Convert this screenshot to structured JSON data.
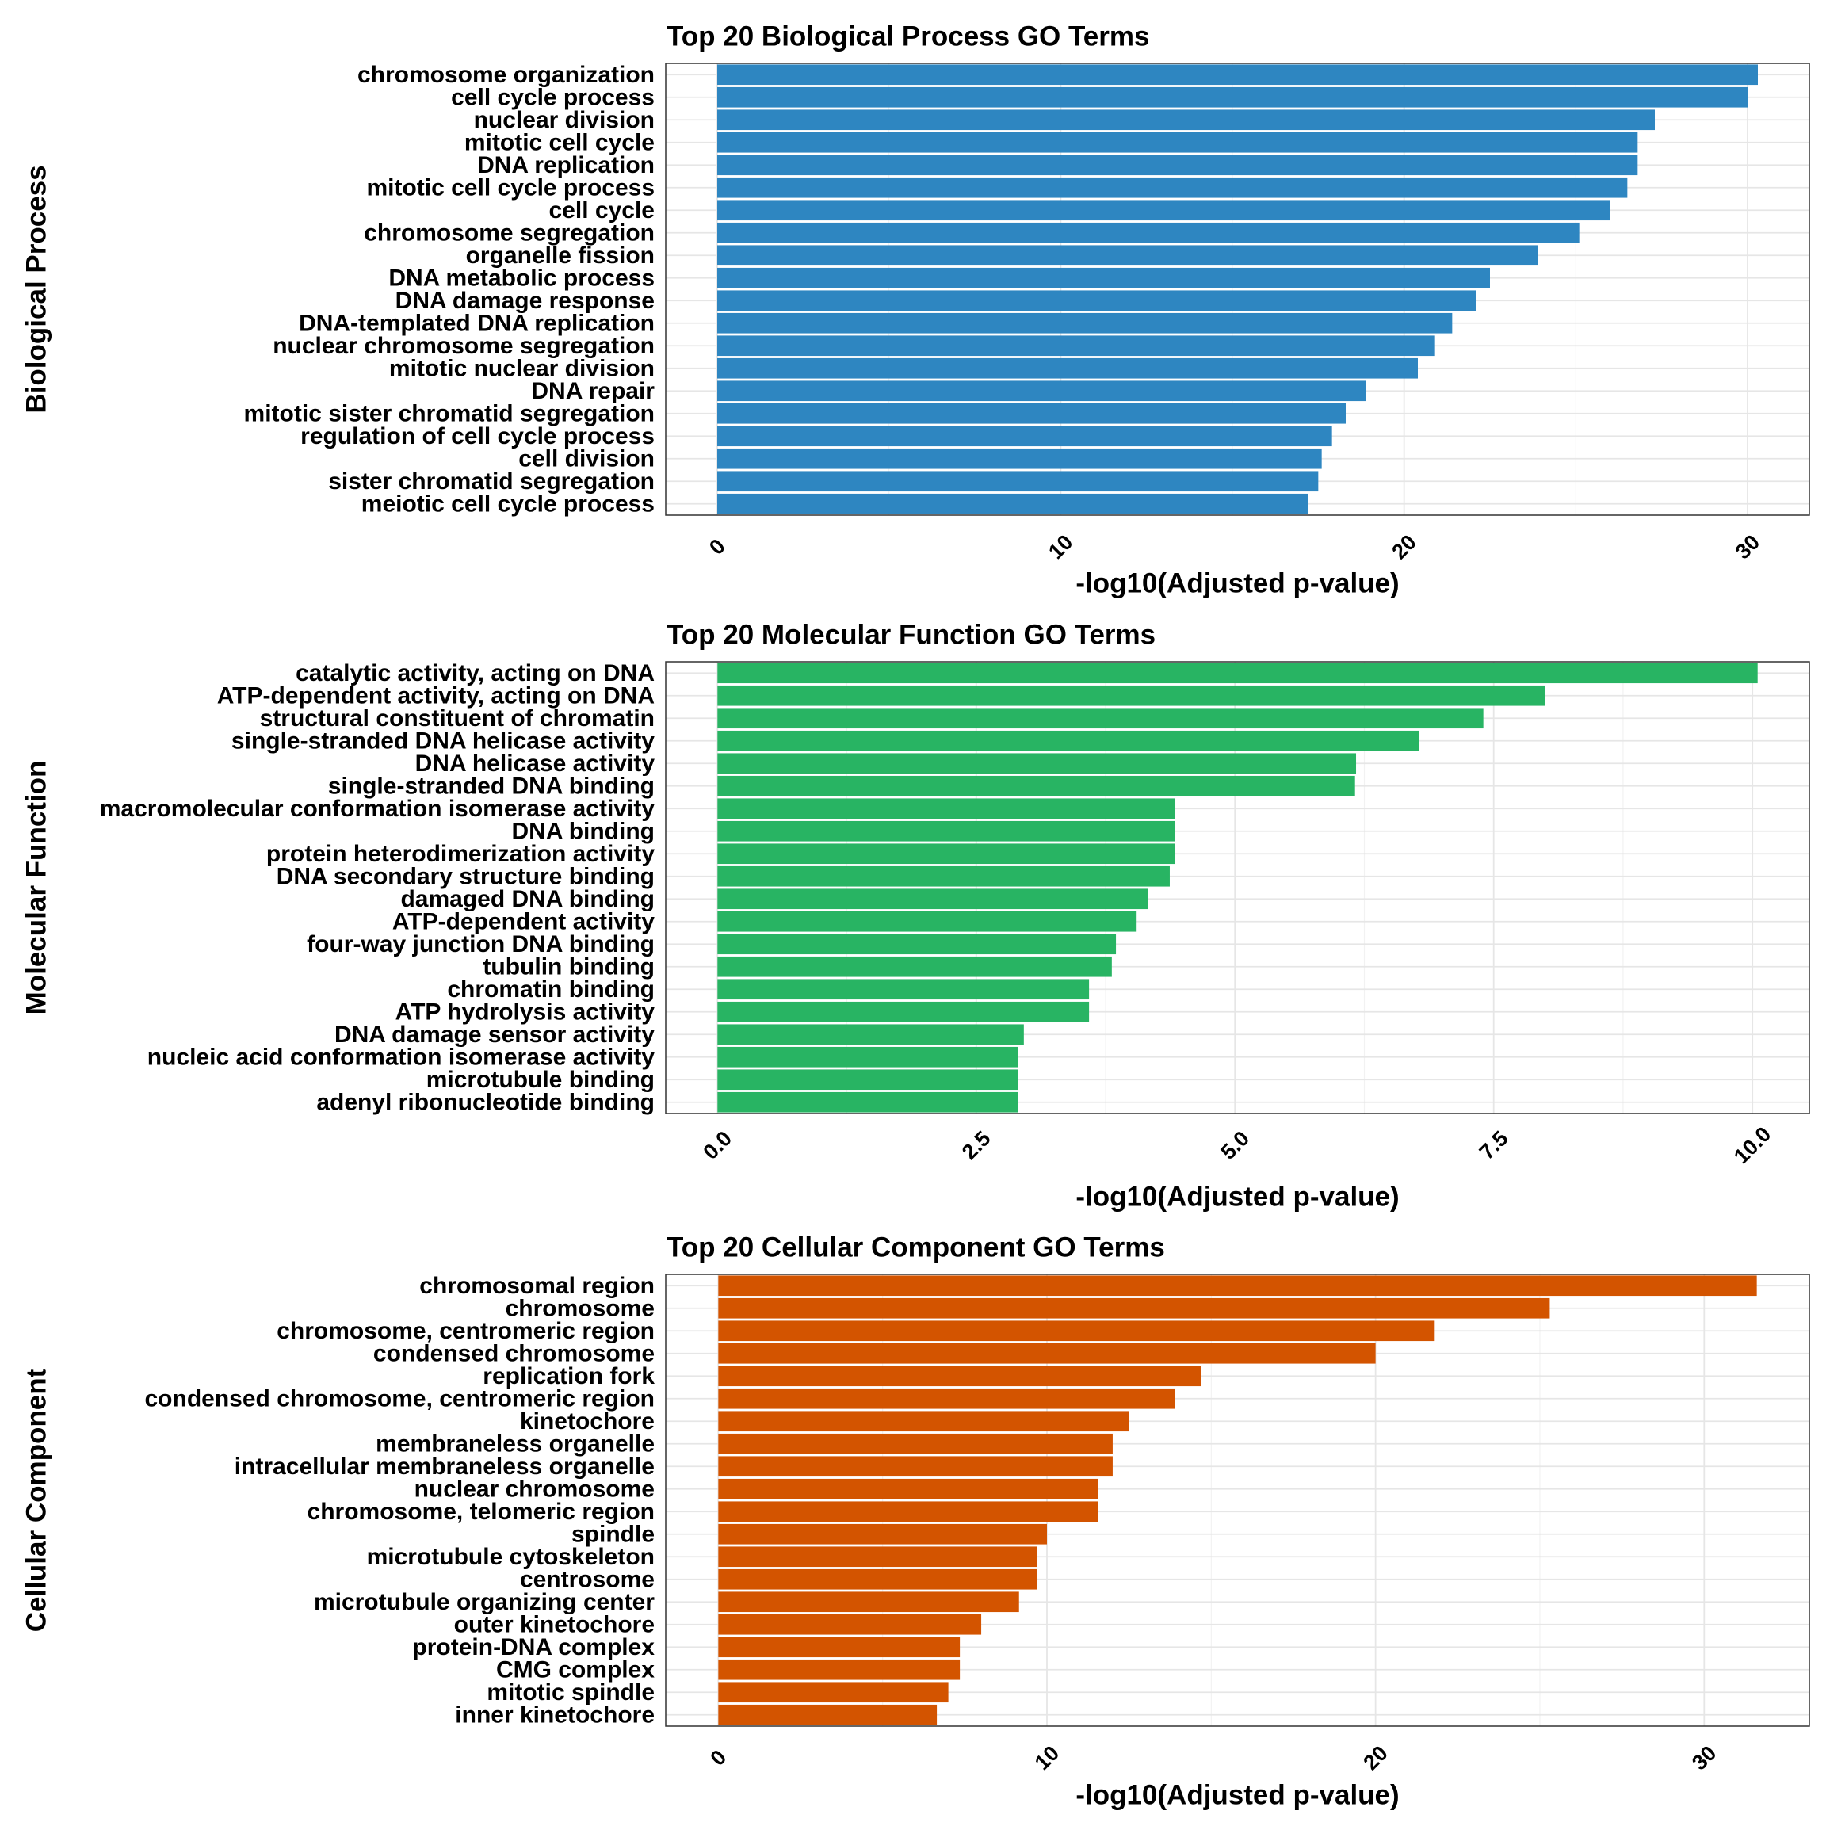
{
  "chart_data": [
    {
      "type": "bar",
      "orientation": "horizontal",
      "title": "Top 20 Biological Process GO Terms",
      "xlabel": "-log10(Adjusted p-value)",
      "ylabel": "Biological Process",
      "xlim": [
        -1.5,
        31.8
      ],
      "xticks": [
        0,
        10,
        20,
        30
      ],
      "xtick_labels": [
        "0",
        "10",
        "20",
        "30"
      ],
      "grid": true,
      "color": "#2e86c1",
      "categories": [
        "chromosome organization",
        "cell cycle process",
        "nuclear division",
        "mitotic cell cycle",
        "DNA replication",
        "mitotic cell cycle process",
        "cell cycle",
        "chromosome segregation",
        "organelle fission",
        "DNA metabolic process",
        "DNA damage response",
        "DNA-templated DNA replication",
        "nuclear chromosome segregation",
        "mitotic nuclear division",
        "DNA repair",
        "mitotic sister chromatid segregation",
        "regulation of cell cycle process",
        "cell division",
        "sister chromatid segregation",
        "meiotic cell cycle process"
      ],
      "values": [
        30.3,
        30.0,
        27.3,
        26.8,
        26.8,
        26.5,
        26.0,
        25.1,
        23.9,
        22.5,
        22.1,
        21.4,
        20.9,
        20.4,
        18.9,
        18.3,
        17.9,
        17.6,
        17.5,
        17.2
      ]
    },
    {
      "type": "bar",
      "orientation": "horizontal",
      "title": "Top 20 Molecular Function GO Terms",
      "xlabel": "-log10(Adjusted p-value)",
      "ylabel": "Molecular Function",
      "xlim": [
        -0.5,
        10.55
      ],
      "xticks": [
        0,
        2.5,
        5,
        7.5,
        10
      ],
      "xtick_labels": [
        "0.0",
        "2.5",
        "5.0",
        "7.5",
        "10.0"
      ],
      "grid": true,
      "color": "#28b463",
      "categories": [
        "catalytic activity, acting on DNA",
        "ATP-dependent activity, acting on DNA",
        "structural constituent of chromatin",
        "single-stranded DNA helicase activity",
        "DNA helicase activity",
        "single-stranded DNA binding",
        "macromolecular conformation isomerase activity",
        "DNA binding",
        "protein heterodimerization activity",
        "DNA secondary structure binding",
        "damaged DNA binding",
        "ATP-dependent activity",
        "four-way junction DNA binding",
        "tubulin binding",
        "chromatin binding",
        "ATP hydrolysis activity",
        "DNA damage sensor activity",
        "nucleic acid conformation isomerase activity",
        "microtubule binding",
        "adenyl ribonucleotide binding"
      ],
      "values": [
        10.05,
        8.0,
        7.4,
        6.78,
        6.17,
        6.16,
        4.42,
        4.42,
        4.42,
        4.37,
        4.16,
        4.05,
        3.85,
        3.81,
        3.59,
        3.59,
        2.96,
        2.9,
        2.9,
        2.9
      ]
    },
    {
      "type": "bar",
      "orientation": "horizontal",
      "title": "Top 20 Cellular Component GO Terms",
      "xlabel": "-log10(Adjusted p-value)",
      "ylabel": "Cellular Component",
      "xlim": [
        -1.6,
        33.2
      ],
      "xticks": [
        0,
        10,
        20,
        30
      ],
      "xtick_labels": [
        "0",
        "10",
        "20",
        "30"
      ],
      "grid": true,
      "color": "#d35400",
      "categories": [
        "chromosomal region",
        "chromosome",
        "chromosome, centromeric region",
        "condensed chromosome",
        "replication fork",
        "condensed chromosome, centromeric region",
        "kinetochore",
        "membraneless organelle",
        "intracellular membraneless organelle",
        "nuclear chromosome",
        "chromosome, telomeric region",
        "spindle",
        "microtubule cytoskeleton",
        "centrosome",
        "microtubule organizing center",
        "outer kinetochore",
        "protein-DNA complex",
        "CMG complex",
        "mitotic spindle",
        "inner kinetochore"
      ],
      "values": [
        31.6,
        25.3,
        21.8,
        20.0,
        14.7,
        13.9,
        12.5,
        12.0,
        12.0,
        11.55,
        11.55,
        10.0,
        9.7,
        9.7,
        9.15,
        8.0,
        7.35,
        7.35,
        7.0,
        6.65
      ]
    }
  ]
}
